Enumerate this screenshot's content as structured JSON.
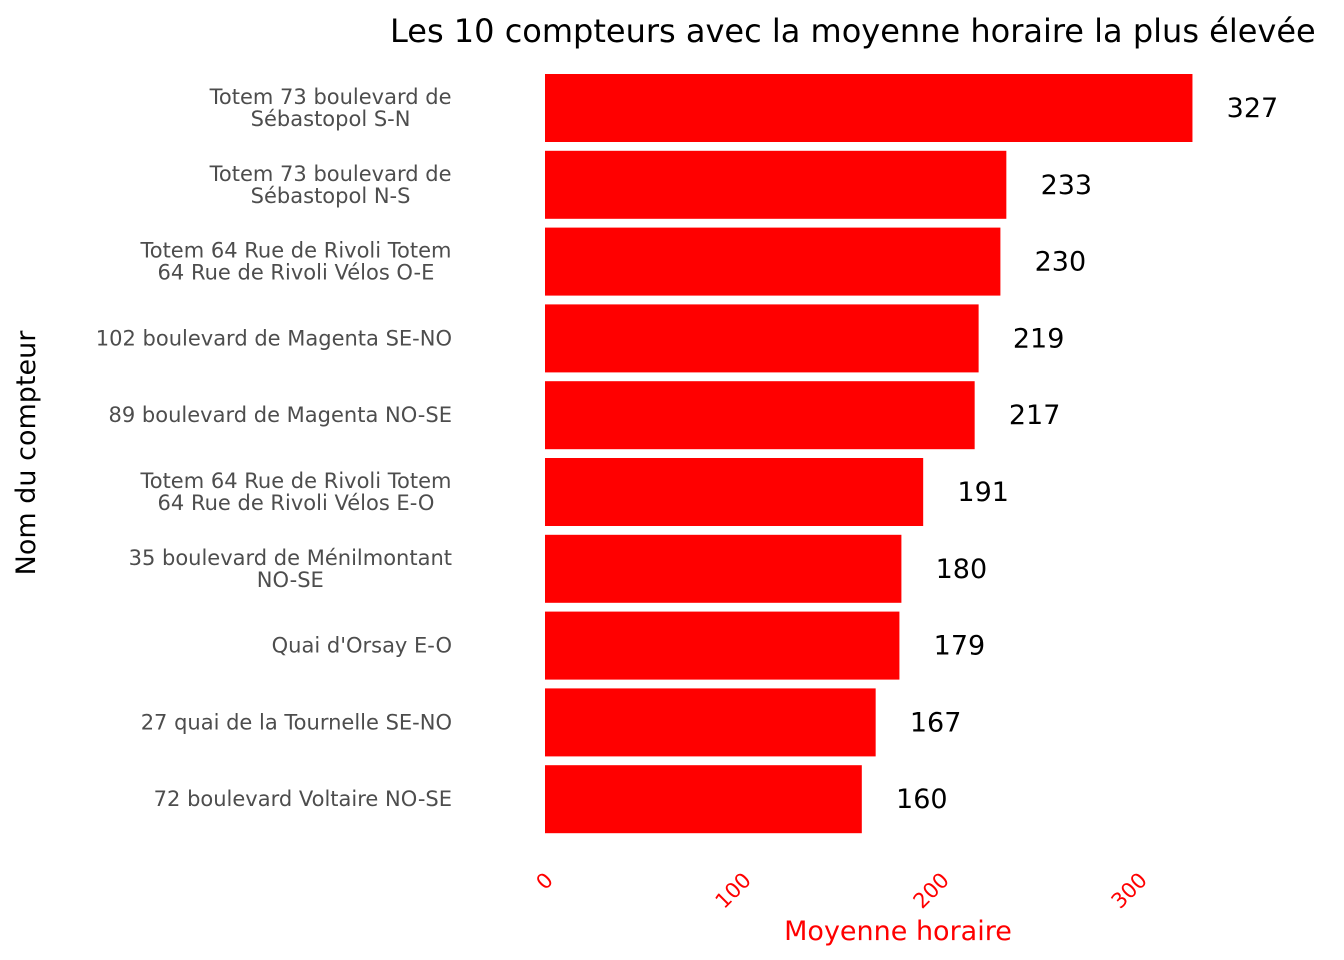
{
  "chart_data": {
    "type": "bar",
    "orientation": "horizontal",
    "title": "Les 10 compteurs avec la moyenne horaire la plus élevée",
    "xlabel": "Moyenne horaire",
    "ylabel": "Nom du compteur",
    "categories": [
      [
        "Totem 73 boulevard de",
        "Sébastopol S-N"
      ],
      [
        "Totem 73 boulevard de",
        "Sébastopol N-S"
      ],
      [
        "Totem 64 Rue de Rivoli Totem",
        "64 Rue de Rivoli Vélos O-E"
      ],
      [
        "102 boulevard de Magenta SE-NO"
      ],
      [
        "89 boulevard de Magenta NO-SE"
      ],
      [
        "Totem 64 Rue de Rivoli Totem",
        "64 Rue de Rivoli Vélos E-O"
      ],
      [
        "35 boulevard de Ménilmontant",
        "NO-SE"
      ],
      [
        "Quai d'Orsay E-O"
      ],
      [
        "27 quai de la Tournelle SE-NO"
      ],
      [
        "72 boulevard Voltaire NO-SE"
      ]
    ],
    "values": [
      327,
      233,
      230,
      219,
      217,
      191,
      180,
      179,
      167,
      160
    ],
    "value_labels": [
      "327",
      "233",
      "230",
      "219",
      "217",
      "191",
      "180",
      "179",
      "167",
      "160"
    ],
    "xlim": [
      0,
      345
    ],
    "xticks": [
      0,
      100,
      200,
      300
    ],
    "xtick_labels": [
      "0",
      "100",
      "200",
      "300"
    ],
    "grid": false,
    "legend": "none",
    "colors": {
      "bar": "#ff0000",
      "xtick": "#ff0000",
      "xlabel": "#ff0000"
    }
  }
}
